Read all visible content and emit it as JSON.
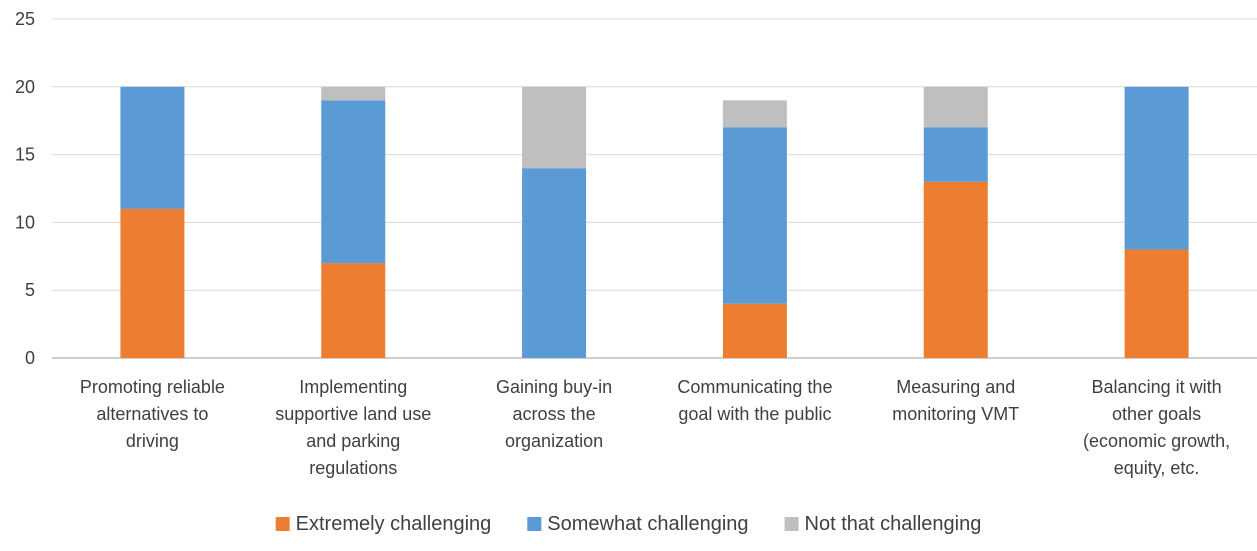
{
  "chart_data": {
    "type": "bar",
    "stacked": true,
    "title": "",
    "xlabel": "",
    "ylabel": "",
    "ylim": [
      0,
      25
    ],
    "yticks": [
      0,
      5,
      10,
      15,
      20,
      25
    ],
    "grid": "horizontal",
    "legend": "bottom",
    "categories": [
      [
        "Promoting reliable",
        "alternatives to",
        "driving"
      ],
      [
        "Implementing",
        "supportive land use",
        "and parking",
        "regulations"
      ],
      [
        "Gaining buy-in",
        "across the",
        "organization"
      ],
      [
        "Communicating the",
        "goal with the public"
      ],
      [
        "Measuring and",
        "monitoring VMT"
      ],
      [
        "Balancing it with",
        "other goals",
        "(economic growth,",
        "equity, etc."
      ]
    ],
    "series": [
      {
        "name": "Extremely challenging",
        "color": "#ED7D31",
        "values": [
          11,
          7,
          0,
          4,
          13,
          8
        ]
      },
      {
        "name": "Somewhat challenging",
        "color": "#5B9BD5",
        "values": [
          9,
          12,
          14,
          13,
          4,
          12
        ]
      },
      {
        "name": "Not that challenging",
        "color": "#BFBFBF",
        "values": [
          0,
          1,
          6,
          2,
          3,
          0
        ]
      }
    ],
    "gridline_color": "#D9D9D9",
    "axis_color": "#BFBFBF"
  }
}
